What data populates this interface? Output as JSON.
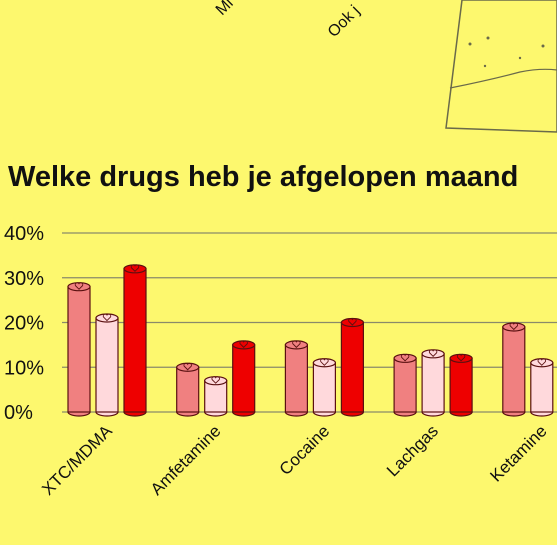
{
  "decorations": [
    "Mi",
    "Ook j"
  ],
  "chart_data": {
    "type": "bar",
    "title": "Welke drugs heb je afgelopen maand",
    "categories": [
      "XTC/MDMA",
      "Amfetamine",
      "Cocaine",
      "Lachgas",
      "Ketamine"
    ],
    "series": [
      {
        "color": "#f08080",
        "values": [
          28,
          10,
          15,
          12,
          19
        ]
      },
      {
        "color": "#ffd9dc",
        "values": [
          21,
          7,
          11,
          13,
          11
        ]
      },
      {
        "color": "#ee0000",
        "values": [
          32,
          15,
          20,
          12,
          null
        ]
      }
    ],
    "ylim": [
      0,
      40
    ],
    "yticks": [
      {
        "value": 0,
        "label": "0%"
      },
      {
        "value": 10,
        "label": "10%"
      },
      {
        "value": 20,
        "label": "20%"
      },
      {
        "value": 30,
        "label": "30%"
      },
      {
        "value": 40,
        "label": "40%"
      }
    ],
    "grid": true
  }
}
